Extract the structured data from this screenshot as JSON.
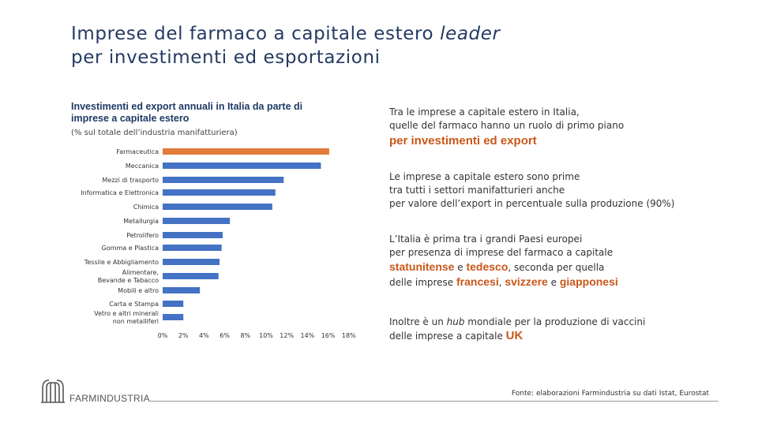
{
  "title": {
    "part1": "Imprese del farmaco a capitale estero ",
    "italic": "leader",
    "line2": "per investimenti ed esportazioni"
  },
  "chart_data": {
    "type": "bar",
    "orientation": "horizontal",
    "title": "Investimenti ed export annuali in Italia da parte di imprese a capitale estero",
    "subtitle": "(% sul totale dell’industria manifatturiera)",
    "categories": [
      "Farmaceutica",
      "Meccanica",
      "Mezzi di trasporto",
      "Informatica e Elettronica",
      "Chimica",
      "Metallurgia",
      "Petrolifero",
      "Gomma e Plastica",
      "Tessile e Abbigliamento",
      "Alimentare, Bevande e Tabacco",
      "Mobili e altro",
      "Carta e Stampa",
      "Vetro e altri minerali non metalliferi"
    ],
    "values": [
      16.1,
      15.3,
      11.7,
      10.9,
      10.6,
      6.5,
      5.8,
      5.7,
      5.5,
      5.4,
      3.6,
      2.0,
      2.0
    ],
    "highlight_color": "#e07b39",
    "bar_color": "#4472c4",
    "xlim": [
      0,
      18
    ],
    "xticks": [
      "0%",
      "2%",
      "4%",
      "6%",
      "8%",
      "10%",
      "12%",
      "14%",
      "16%",
      "18%"
    ],
    "grid": false
  },
  "right": {
    "p1_line1": "Tra le imprese a capitale estero in Italia,",
    "p1_line2": "quelle del farmaco hanno un ruolo di primo piano",
    "p1_hl": "per investimenti ed export",
    "p2_line1": "Le imprese a capitale estero sono prime",
    "p2_line2": "tra tutti i settori manifatturieri anche",
    "p2_line3": "per valore dell’export in percentuale sulla produzione (90%)",
    "p3_line1": "L’Italia è prima tra i grandi Paesi europei",
    "p3_line2": "per presenza di imprese del farmaco a capitale",
    "p3_hl1": "statunitense",
    "p3_e1": " e ",
    "p3_hl2": "tedesco",
    "p3_rest": ", seconda per quella",
    "p3_line4a": "delle imprese ",
    "p3_hl3": "francesi",
    "p3_comma": ", ",
    "p3_hl4": "svizzere",
    "p3_e2": " e ",
    "p3_hl5": "giapponesi",
    "p4_line1a": "Inoltre è un ",
    "p4_hub": "hub",
    "p4_line1b": " mondiale per la produzione di vaccini",
    "p4_line2a": "delle imprese a capitale ",
    "p4_hl": "UK"
  },
  "footer": {
    "logo_text": "FARMINDUSTRIA",
    "source": "Fonte: elaborazioni Farmindustria su dati Istat, Eurostat"
  },
  "colors": {
    "title": "#243a62",
    "accent": "#c8571a",
    "bar": "#4472c4",
    "bar_highlight": "#e07b39"
  }
}
